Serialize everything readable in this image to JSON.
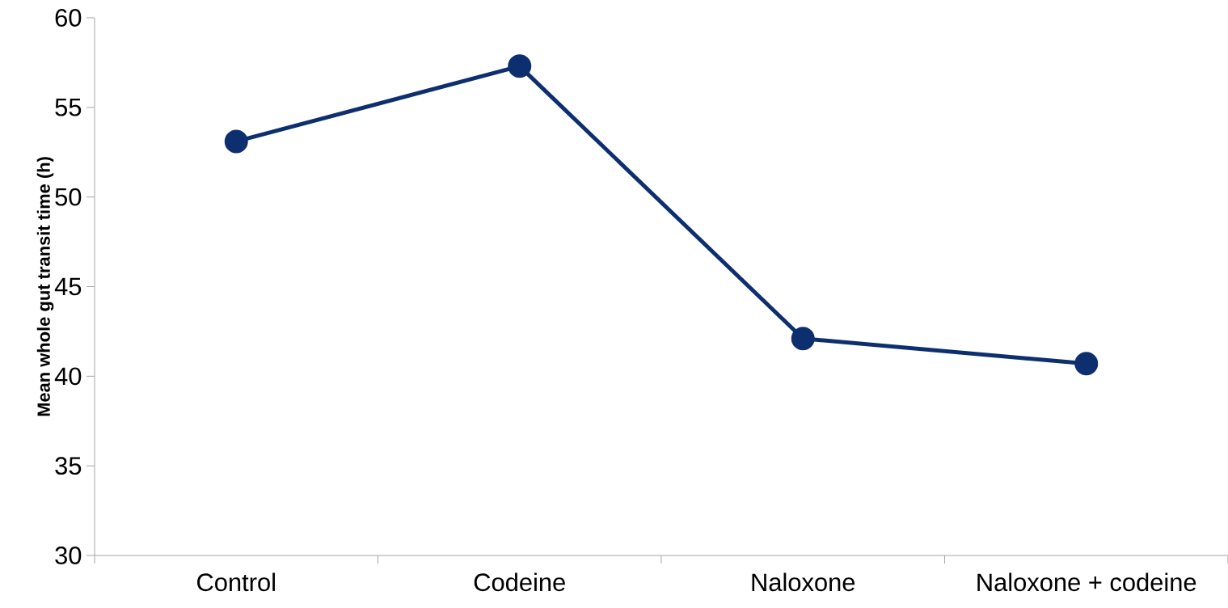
{
  "chart_data": {
    "type": "line",
    "ylabel": "Mean whole gut transit time (h)",
    "categories": [
      "Control",
      "Codeine",
      "Naloxone",
      "Naloxone + codeine"
    ],
    "values": [
      53.1,
      57.3,
      42.1,
      40.7
    ],
    "color": "#0e2f6f",
    "marker": "circle",
    "ylim": [
      30,
      60
    ],
    "yticks": [
      30,
      35,
      40,
      45,
      50,
      55,
      60
    ]
  }
}
